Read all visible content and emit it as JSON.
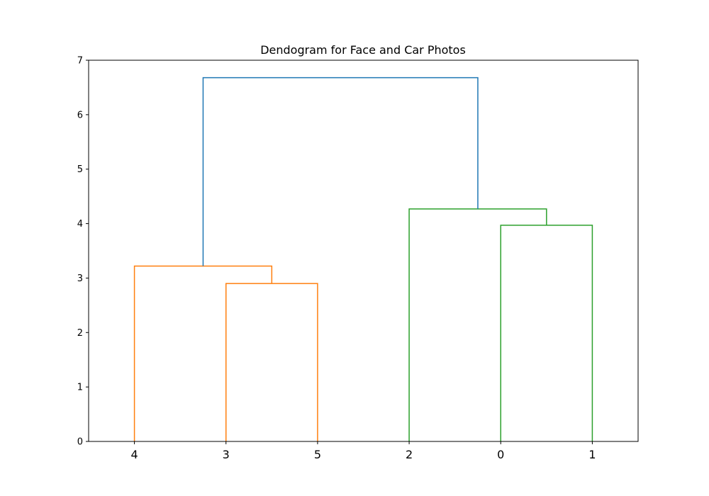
{
  "chart_data": {
    "type": "dendrogram",
    "title": "Dendogram for Face and Car Photos",
    "xlabel": "",
    "ylabel": "",
    "ylim": [
      0,
      7
    ],
    "yticks": [
      0,
      1,
      2,
      3,
      4,
      5,
      6,
      7
    ],
    "leaf_order": [
      "4",
      "3",
      "5",
      "2",
      "0",
      "1"
    ],
    "grid": false,
    "links": [
      {
        "left": "leaf:3",
        "right": "leaf:5",
        "height": 2.9,
        "color": "#ff7f0e"
      },
      {
        "left": "leaf:4",
        "right": "link:0",
        "height": 3.22,
        "color": "#ff7f0e"
      },
      {
        "left": "leaf:0",
        "right": "leaf:1",
        "height": 3.97,
        "color": "#2ca02c"
      },
      {
        "left": "leaf:2",
        "right": "link:2",
        "height": 4.27,
        "color": "#2ca02c"
      },
      {
        "left": "link:1",
        "right": "link:3",
        "height": 6.68,
        "color": "#1f77b4"
      }
    ]
  }
}
